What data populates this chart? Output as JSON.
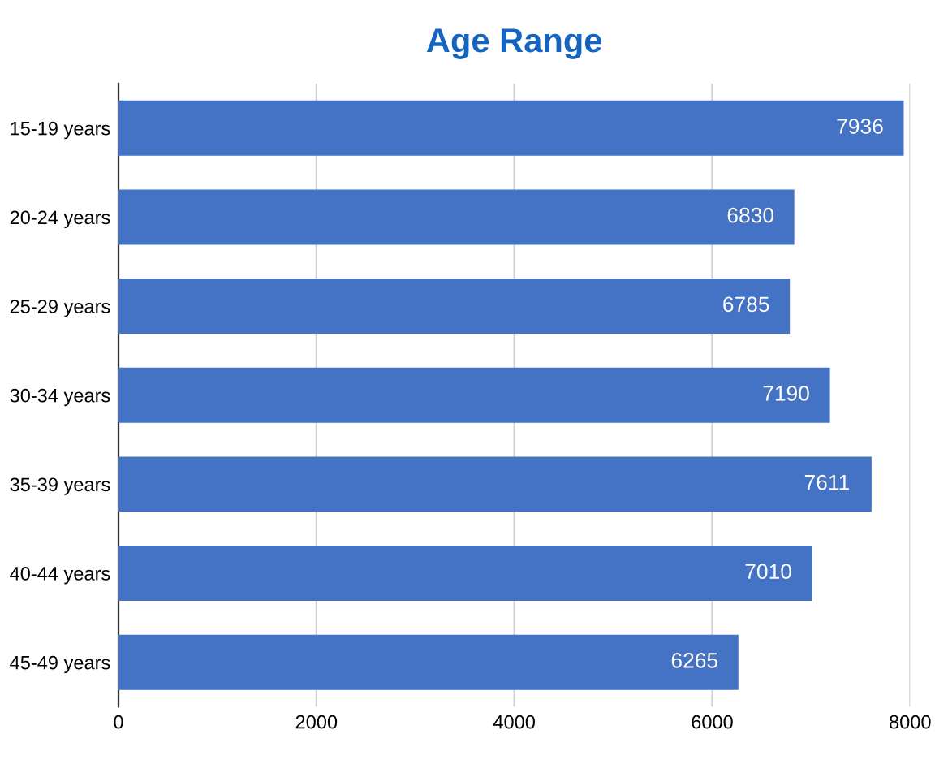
{
  "chart_data": {
    "type": "bar",
    "orientation": "horizontal",
    "title": "Age Range",
    "categories": [
      "15-19 years",
      "20-24 years",
      "25-29 years",
      "30-34 years",
      "35-39 years",
      "40-44 years",
      "45-49 years"
    ],
    "values": [
      7936,
      6830,
      6785,
      7190,
      7611,
      7010,
      6265
    ],
    "color": "#4472c4",
    "xlim": [
      0,
      8000
    ],
    "xticks": [
      0,
      2000,
      4000,
      6000,
      8000
    ],
    "grid": "x",
    "data_labels": true,
    "legend": false
  }
}
